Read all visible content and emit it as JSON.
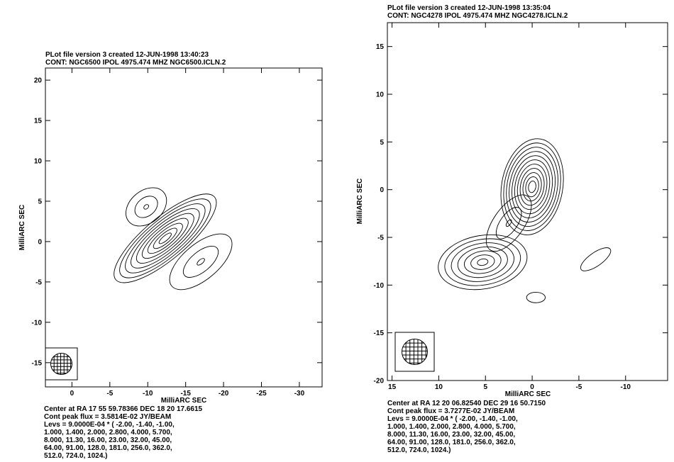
{
  "chart_data": [
    {
      "type": "contour",
      "header_line1": "PLot file version  3  created 12-JUN-1998 13:40:23",
      "header_line2": "CONT: NGC6500   IPOL   4975.474 MHZ   NGC6500.ICLN.2",
      "xlabel": "MilliARC SEC",
      "ylabel": "MilliARC SEC",
      "xlim": [
        3.5,
        -33
      ],
      "ylim": [
        -18,
        21.5
      ],
      "xticks": [
        0,
        -5,
        -10,
        -15,
        -20,
        -25,
        -30
      ],
      "yticks": [
        20,
        15,
        10,
        5,
        0,
        -5,
        -10,
        -15
      ],
      "footer": [
        "Center at RA 17 55 59.78366  DEC 18 20 17.6615",
        "Cont peak flux =  3.5814E-02 JY/BEAM",
        "Levs =  9.0000E-04 * (  -2.00, -1.40, -1.00,",
        " 1.000, 1.400, 2.000, 2.800, 4.000, 5.700,",
        " 8.000, 11.30, 16.00, 23.00, 32.00, 45.00,",
        " 64.00, 91.00, 128.0, 181.0, 256.0, 362.0,",
        " 512.0, 724.0, 1024.)"
      ],
      "components": [
        {
          "x": -12.3,
          "y": 0.4,
          "a": 8.5,
          "b": 2.6,
          "pa": 40,
          "levels": 9
        },
        {
          "x": -9.8,
          "y": 4.3,
          "a": 3.0,
          "b": 2.0,
          "pa": 40,
          "levels": 3
        },
        {
          "x": -17.0,
          "y": -2.5,
          "a": 5.0,
          "b": 2.2,
          "pa": 40,
          "levels": 3
        }
      ],
      "beam_icon": "hatched-circle"
    },
    {
      "type": "contour",
      "header_line1": "PLot file version  3  created 12-JUN-1998 13:35:04",
      "header_line2": "CONT: NGC4278   IPOL   4975.474 MHZ   NGC4278.ICLN.2",
      "xlabel": "MilliARC SEC",
      "ylabel": "MilliARC SEC",
      "xlim": [
        15.5,
        -14.5
      ],
      "ylim": [
        -20,
        17.5
      ],
      "xticks": [
        15,
        10,
        5,
        0,
        -5,
        -10
      ],
      "yticks": [
        15,
        10,
        5,
        0,
        -5,
        -10,
        -15,
        -20
      ],
      "footer": [
        "Center at RA 12 20 06.82540  DEC 29 16 50.7150",
        "Cont peak flux =  3.7277E-02 JY/BEAM",
        "Levs =  9.0000E-04 * (  -2.00, -1.40, -1.00,",
        " 1.000, 1.400, 2.000, 2.800, 4.000, 5.700,",
        " 8.000, 11.30, 16.00, 23.00, 32.00, 45.00,",
        " 64.00, 91.00, 128.0, 181.0, 256.0, 362.0,",
        " 512.0, 724.0, 1024.)"
      ],
      "components": [
        {
          "x": 0.0,
          "y": 0.3,
          "a": 5.2,
          "b": 3.2,
          "pa": 80,
          "levels": 11
        },
        {
          "x": 5.3,
          "y": -7.6,
          "a": 4.8,
          "b": 2.8,
          "pa": 10,
          "levels": 7
        },
        {
          "x": 2.5,
          "y": -3.5,
          "a": 3.5,
          "b": 1.6,
          "pa": 55,
          "levels": 3
        },
        {
          "x": -6.8,
          "y": -7.3,
          "a": 1.9,
          "b": 0.7,
          "pa": 35,
          "levels": 1
        },
        {
          "x": -0.4,
          "y": -11.3,
          "a": 1.0,
          "b": 0.55,
          "pa": 0,
          "levels": 1
        }
      ],
      "beam_icon": "hatched-circle"
    }
  ]
}
